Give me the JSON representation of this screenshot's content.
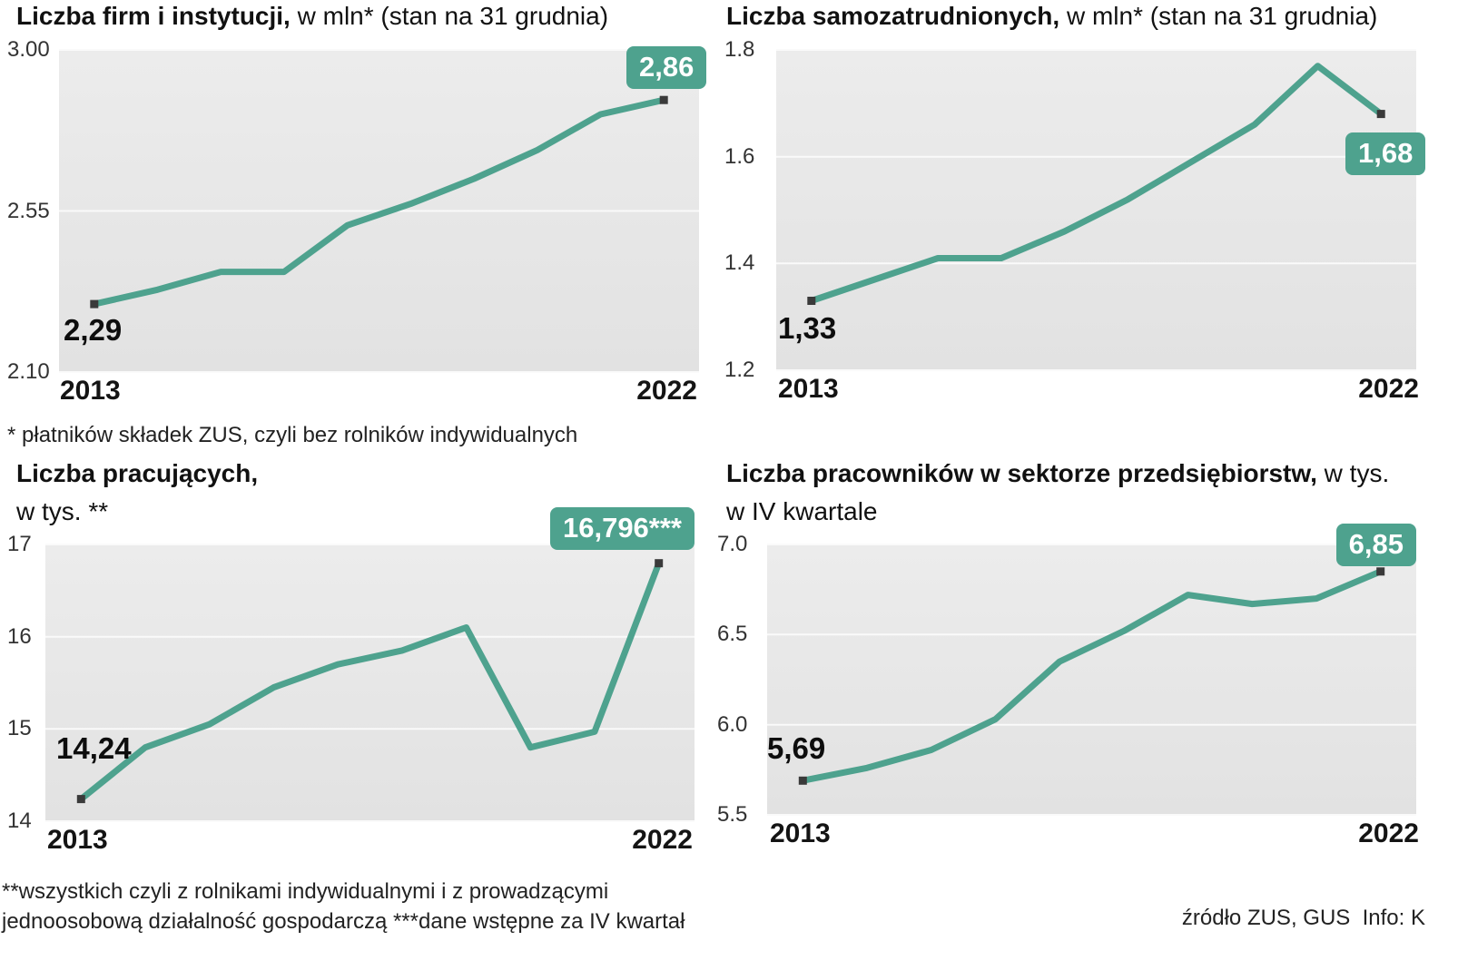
{
  "accent_color": "#4EA28E",
  "chart_data": [
    {
      "type": "line",
      "title_bold": "Liczba firm i instytucji,",
      "title_rest": " w mln* (stan na 31 grudnia)",
      "x": [
        2013,
        2014,
        2015,
        2016,
        2017,
        2018,
        2019,
        2020,
        2021,
        2022
      ],
      "values": [
        2.29,
        2.33,
        2.38,
        2.38,
        2.51,
        2.57,
        2.64,
        2.72,
        2.82,
        2.86
      ],
      "ylim": [
        2.1,
        3.0
      ],
      "ytick_values": [
        3.0,
        2.55,
        2.1
      ],
      "ytick_labels": [
        "3.00",
        "2.55",
        "2.10"
      ],
      "x_first": "2013",
      "x_last": "2022",
      "start_annotation": "2,29",
      "end_annotation": "2,86",
      "line_color": "#4EA28E",
      "grid": "horizontal-white",
      "legend": "none"
    },
    {
      "type": "line",
      "title_bold": "Liczba samozatrudnionych,",
      "title_rest": " w mln* (stan na 31 grudnia)",
      "x": [
        2013,
        2014,
        2015,
        2016,
        2017,
        2018,
        2019,
        2020,
        2021,
        2022
      ],
      "values": [
        1.33,
        1.37,
        1.41,
        1.41,
        1.46,
        1.52,
        1.59,
        1.66,
        1.77,
        1.68
      ],
      "ylim": [
        1.2,
        1.8
      ],
      "ytick_values": [
        1.8,
        1.6,
        1.4,
        1.2
      ],
      "ytick_labels": [
        "1.8",
        "1.6",
        "1.4",
        "1.2"
      ],
      "x_first": "2013",
      "x_last": "2022",
      "start_annotation": "1,33",
      "end_annotation": "1,68",
      "line_color": "#4EA28E",
      "grid": "horizontal-white",
      "legend": "none"
    },
    {
      "type": "line",
      "title_bold": "Liczba pracujących,",
      "title_rest": "",
      "subtitle": "w tys. **",
      "x": [
        2013,
        2014,
        2015,
        2016,
        2017,
        2018,
        2019,
        2020,
        2021,
        2022
      ],
      "values": [
        14.24,
        14.8,
        15.05,
        15.45,
        15.7,
        15.85,
        16.1,
        14.8,
        14.97,
        16.796
      ],
      "ylim": [
        14,
        17
      ],
      "ytick_values": [
        17,
        16,
        15,
        14
      ],
      "ytick_labels": [
        "17",
        "16",
        "15",
        "14"
      ],
      "x_first": "2013",
      "x_last": "2022",
      "start_annotation": "14,24",
      "end_annotation": "16,796***",
      "line_color": "#4EA28E",
      "grid": "horizontal-white",
      "legend": "none"
    },
    {
      "type": "line",
      "title_bold": "Liczba pracowników w sektorze przedsiębiorstw,",
      "title_rest": " w tys.",
      "subtitle": "w IV kwartale",
      "x": [
        2013,
        2014,
        2015,
        2016,
        2017,
        2018,
        2019,
        2020,
        2021,
        2022
      ],
      "values": [
        5.69,
        5.76,
        5.86,
        6.03,
        6.35,
        6.52,
        6.72,
        6.67,
        6.7,
        6.85
      ],
      "ylim": [
        5.5,
        7.0
      ],
      "ytick_values": [
        7.0,
        6.5,
        6.0,
        5.5
      ],
      "ytick_labels": [
        "7.0",
        "6.5",
        "6.0",
        "5.5"
      ],
      "x_first": "2013",
      "x_last": "2022",
      "start_annotation": "5,69",
      "end_annotation": "6,85",
      "line_color": "#4EA28E",
      "grid": "horizontal-white",
      "legend": "none"
    }
  ],
  "footnote_top": "* płatników składek ZUS, czyli bez rolników indywidualnych",
  "footnote_bottom_line1": "**wszystkich czyli z rolnikami indywidualnymi i z prowadzącymi",
  "footnote_bottom_line2": "jednoosobową działalność gospodarczą ***dane wstępne za IV kwartał",
  "source": "źródło ZUS, GUS  Info: K"
}
